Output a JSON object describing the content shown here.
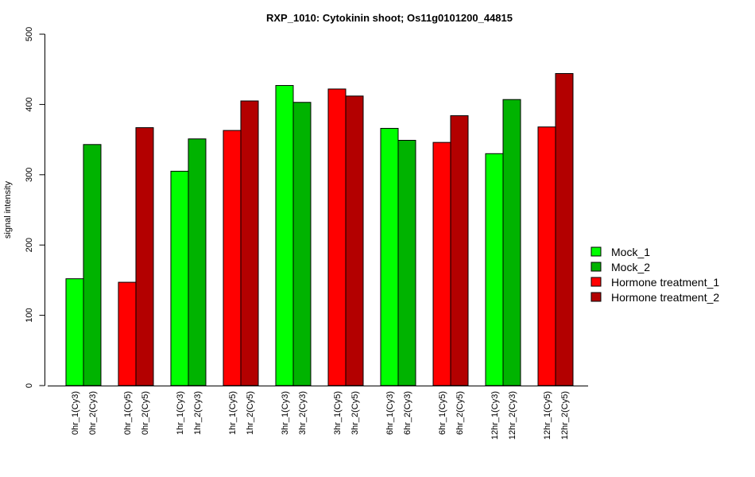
{
  "chart_data": {
    "type": "bar",
    "title": "RXP_1010: Cytokinin shoot; Os11g0101200_44815",
    "ylabel": "signal intensity",
    "xlabel": "",
    "ylim": [
      0,
      500
    ],
    "yticks": [
      0,
      100,
      200,
      300,
      400,
      500
    ],
    "grid": false,
    "legend_position": "right",
    "series": [
      {
        "name": "Mock_1",
        "color": "#00ff00"
      },
      {
        "name": "Mock_2",
        "color": "#00b300"
      },
      {
        "name": "Hormone treatment_1",
        "color": "#ff0000"
      },
      {
        "name": "Hormone treatment_2",
        "color": "#b30000"
      }
    ],
    "bars": [
      {
        "label": "0hr_1(Cy3)",
        "value": 152,
        "series": 0
      },
      {
        "label": "0hr_2(Cy3)",
        "value": 343,
        "series": 1
      },
      {
        "label": "0hr_1(Cy5)",
        "value": 147,
        "series": 2
      },
      {
        "label": "0hr_2(Cy5)",
        "value": 367,
        "series": 3
      },
      {
        "label": "1hr_1(Cy3)",
        "value": 305,
        "series": 0
      },
      {
        "label": "1hr_2(Cy3)",
        "value": 351,
        "series": 1
      },
      {
        "label": "1hr_1(Cy5)",
        "value": 363,
        "series": 2
      },
      {
        "label": "1hr_2(Cy5)",
        "value": 405,
        "series": 3
      },
      {
        "label": "3hr_1(Cy3)",
        "value": 427,
        "series": 0
      },
      {
        "label": "3hr_2(Cy3)",
        "value": 403,
        "series": 1
      },
      {
        "label": "3hr_1(Cy5)",
        "value": 422,
        "series": 2
      },
      {
        "label": "3hr_2(Cy5)",
        "value": 412,
        "series": 3
      },
      {
        "label": "6hr_1(Cy3)",
        "value": 366,
        "series": 0
      },
      {
        "label": "6hr_2(Cy3)",
        "value": 349,
        "series": 1
      },
      {
        "label": "6hr_1(Cy5)",
        "value": 346,
        "series": 2
      },
      {
        "label": "6hr_2(Cy5)",
        "value": 384,
        "series": 3
      },
      {
        "label": "12hr_1(Cy3)",
        "value": 330,
        "series": 0
      },
      {
        "label": "12hr_2(Cy3)",
        "value": 407,
        "series": 1
      },
      {
        "label": "12hr_1(Cy5)",
        "value": 368,
        "series": 2
      },
      {
        "label": "12hr_2(Cy5)",
        "value": 444,
        "series": 3
      }
    ]
  }
}
